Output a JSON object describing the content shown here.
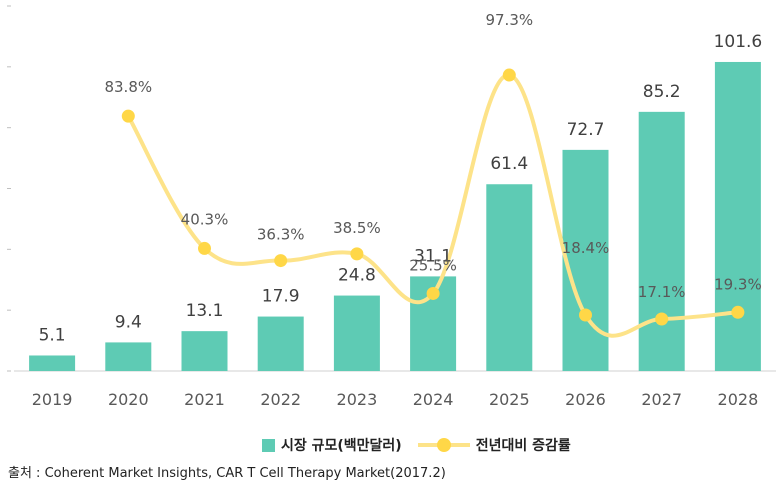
{
  "chart_data": {
    "type": "bar",
    "categories": [
      "2019",
      "2020",
      "2021",
      "2022",
      "2023",
      "2024",
      "2025",
      "2026",
      "2027",
      "2028"
    ],
    "series": [
      {
        "name": "시장 규모(백만달러)",
        "type": "bar",
        "values": [
          5.1,
          9.4,
          13.1,
          17.9,
          24.8,
          31.1,
          61.4,
          72.7,
          85.2,
          101.6
        ],
        "labels": [
          "5.1",
          "9.4",
          "13.1",
          "17.9",
          "24.8",
          "31.1",
          "61.4",
          "72.7",
          "85.2",
          "101.6"
        ],
        "color": "#5ecbb4"
      },
      {
        "name": "전년대비 증감률",
        "type": "line",
        "values": [
          null,
          83.8,
          40.3,
          36.3,
          38.5,
          25.5,
          97.3,
          18.4,
          17.1,
          19.3
        ],
        "labels": [
          "",
          "83.8%",
          "40.3%",
          "36.3%",
          "38.5%",
          "25.5%",
          "97.3%",
          "18.4%",
          "17.1%",
          "19.3%"
        ],
        "line_color": "#fde389",
        "marker_color": "#ffd747"
      }
    ],
    "ylim_bar": [
      0,
      120
    ],
    "ylim_line": [
      0,
      120
    ],
    "grid": false,
    "legend_position": "bottom"
  },
  "source": "출처 : Coherent Market Insights, CAR T Cell Therapy Market(2017.2)"
}
